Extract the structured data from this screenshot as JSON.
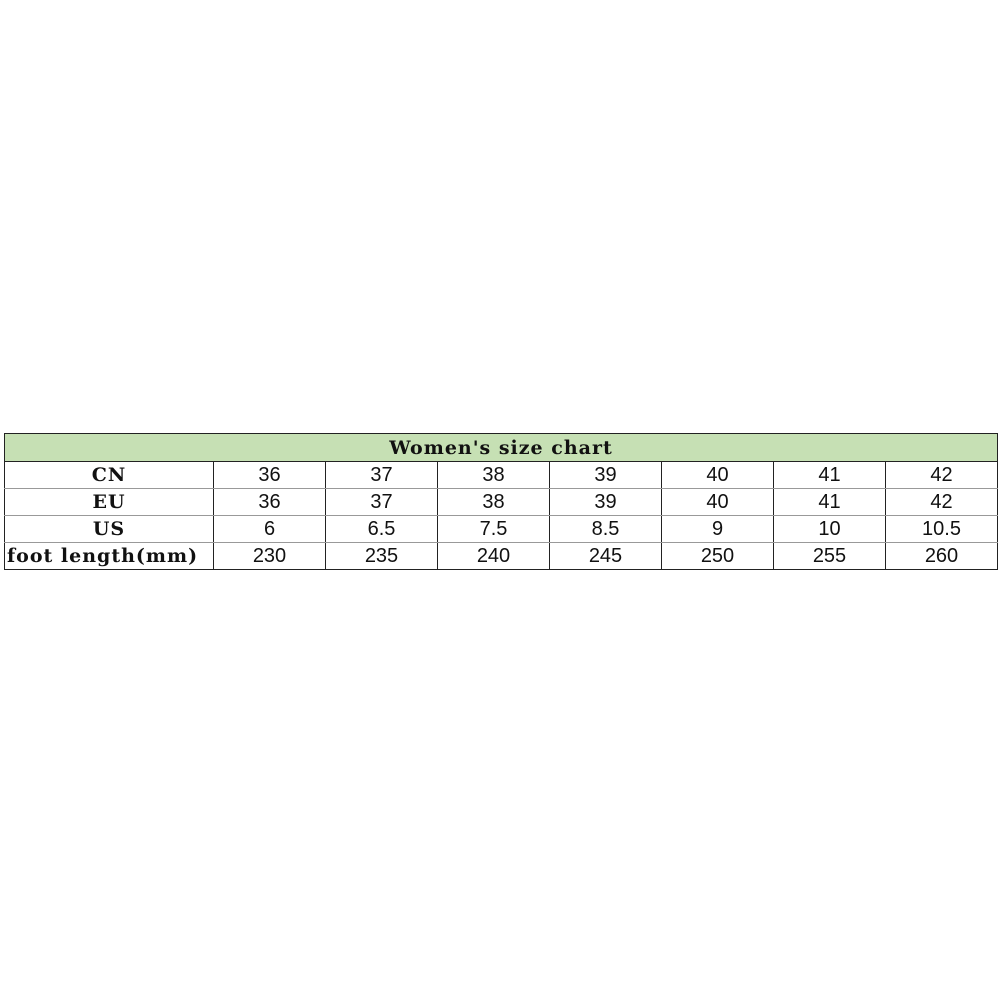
{
  "table": {
    "title": "Women's size chart",
    "rows": [
      {
        "label": "CN",
        "values": [
          "36",
          "37",
          "38",
          "39",
          "40",
          "41",
          "42"
        ]
      },
      {
        "label": "EU",
        "values": [
          "36",
          "37",
          "38",
          "39",
          "40",
          "41",
          "42"
        ]
      },
      {
        "label": "US",
        "values": [
          "6",
          "6.5",
          "7.5",
          "8.5",
          "9",
          "10",
          "10.5"
        ]
      },
      {
        "label": "foot length(mm)",
        "values": [
          "230",
          "235",
          "240",
          "245",
          "250",
          "255",
          "260"
        ]
      }
    ],
    "header_color": "#c6e0b4"
  }
}
